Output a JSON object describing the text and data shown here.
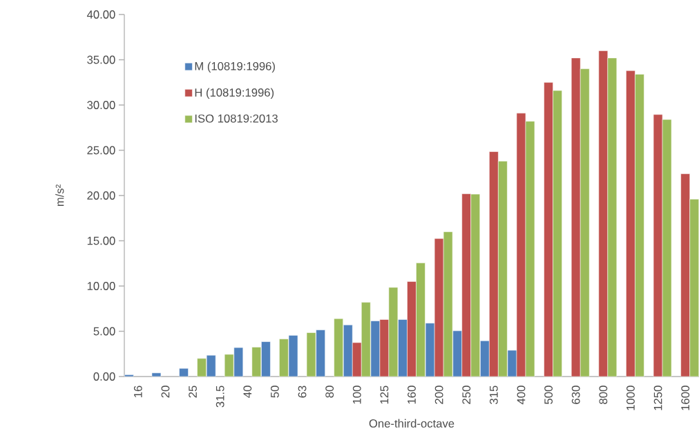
{
  "chart_data": {
    "type": "bar",
    "xlabel": "One-third-octave",
    "ylabel": "m/s²",
    "categories": [
      "16",
      "20",
      "25",
      "31.5",
      "40",
      "50",
      "63",
      "80",
      "100",
      "125",
      "160",
      "200",
      "250",
      "315",
      "400",
      "500",
      "630",
      "800",
      "1000",
      "1250",
      "1600"
    ],
    "series": [
      {
        "name": "M (10819:1996)",
        "color": "#4f81bd",
        "values": [
          0.2,
          0.4,
          0.9,
          2.35,
          3.2,
          3.85,
          4.55,
          5.15,
          5.7,
          6.15,
          6.3,
          5.9,
          5.05,
          3.95,
          2.9,
          null,
          null,
          null,
          null,
          null,
          null
        ]
      },
      {
        "name": "H (10819:1996)",
        "color": "#c0504d",
        "values": [
          null,
          null,
          null,
          null,
          null,
          null,
          null,
          null,
          3.75,
          6.3,
          10.5,
          15.25,
          20.2,
          24.85,
          29.1,
          32.5,
          35.2,
          36.0,
          33.8,
          28.95,
          22.4
        ]
      },
      {
        "name": "ISO 10819:2013",
        "color": "#9bbb59",
        "values": [
          null,
          null,
          2.0,
          2.45,
          3.25,
          4.15,
          4.85,
          6.4,
          8.2,
          9.85,
          12.55,
          16.0,
          20.15,
          23.8,
          28.2,
          31.6,
          34.0,
          35.2,
          33.4,
          28.4,
          19.6
        ]
      }
    ],
    "ylim": [
      0,
      40
    ],
    "yticks": [
      {
        "value": 0,
        "label": "0.00"
      },
      {
        "value": 5,
        "label": "5.00"
      },
      {
        "value": 10,
        "label": "10.00"
      },
      {
        "value": 15,
        "label": "15.00"
      },
      {
        "value": 20,
        "label": "20.00"
      },
      {
        "value": 25,
        "label": "25.00"
      },
      {
        "value": 30,
        "label": "30.00"
      },
      {
        "value": 35,
        "label": "35.00"
      },
      {
        "value": 40,
        "label": "40.00"
      }
    ],
    "legend": "top left"
  }
}
